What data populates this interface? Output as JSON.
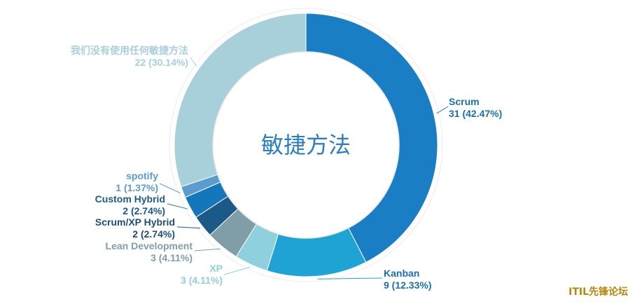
{
  "watermark": "ITIL先锋论坛",
  "chart_data": {
    "type": "pie",
    "donut": true,
    "center_label": "敏捷方法",
    "slices": [
      {
        "name": "Scrum",
        "value": 31,
        "percent_label": "31 (42.47%)",
        "color": "#1a7ec5",
        "label_color": "#1a6fb3"
      },
      {
        "name": "Kanban",
        "value": 9,
        "percent_label": "9 (12.33%)",
        "color": "#1fa3d5",
        "label_color": "#1a6fb3"
      },
      {
        "name": "XP",
        "value": 3,
        "percent_label": "3 (4.11%)",
        "color": "#8ed0dd",
        "label_color": "#8ed0dd"
      },
      {
        "name": "Lean Development",
        "value": 3,
        "percent_label": "3 (4.11%)",
        "color": "#7f9ea8",
        "label_color": "#7f9ea8"
      },
      {
        "name": "Scrum/XP Hybrid",
        "value": 2,
        "percent_label": "2 (2.74%)",
        "color": "#1b5a88",
        "label_color": "#1b4f7a"
      },
      {
        "name": "Custom Hybrid",
        "value": 2,
        "percent_label": "2 (2.74%)",
        "color": "#1577bb",
        "label_color": "#1b5a88"
      },
      {
        "name": "spotify",
        "value": 1,
        "percent_label": "1 (1.37%)",
        "color": "#5b9bd0",
        "label_color": "#5b9bd0"
      },
      {
        "name": "我们没有使用任何敏捷方法",
        "value": 22,
        "percent_label": "22 (30.14%)",
        "color": "#a8d0db",
        "label_color": "#a8d0db"
      }
    ]
  }
}
